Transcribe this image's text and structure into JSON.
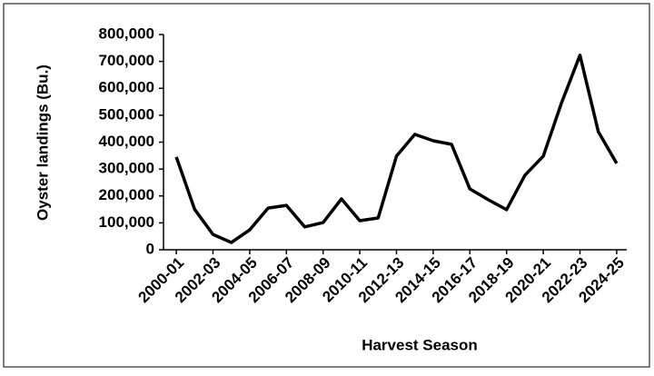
{
  "chart_data": {
    "type": "line",
    "y_label": "Oyster landings (Bu.)",
    "x_label": "Harvest Season",
    "categories": [
      "2000-01",
      null,
      "2002-03",
      null,
      "2004-05",
      null,
      "2006-07",
      null,
      "2008-09",
      null,
      "2010-11",
      null,
      "2012-13",
      null,
      "2014-15",
      null,
      "2016-17",
      null,
      "2018-19",
      null,
      "2020-21",
      null,
      "2022-23",
      null,
      "2024-25"
    ],
    "values": [
      345000,
      150000,
      57000,
      27000,
      74000,
      155000,
      165000,
      85000,
      101000,
      189000,
      108000,
      118000,
      348000,
      429000,
      405000,
      392000,
      226000,
      186000,
      149000,
      277000,
      348000,
      547000,
      723000,
      439000,
      321000
    ],
    "color": "#000000",
    "ylim": [
      0,
      800000
    ],
    "yticks": [
      0,
      {
        "value": 100000,
        "label": "100,000"
      },
      {
        "value": 200000,
        "label": "200,000"
      },
      {
        "value": 300000,
        "label": "300,000"
      },
      {
        "value": 400000,
        "label": "400,000"
      },
      {
        "value": 500000,
        "label": "500,000"
      },
      {
        "value": 600000,
        "label": "600,000"
      },
      {
        "value": 700000,
        "label": "700,000"
      },
      {
        "value": 800000,
        "label": "800,000"
      }
    ],
    "grid": false
  }
}
